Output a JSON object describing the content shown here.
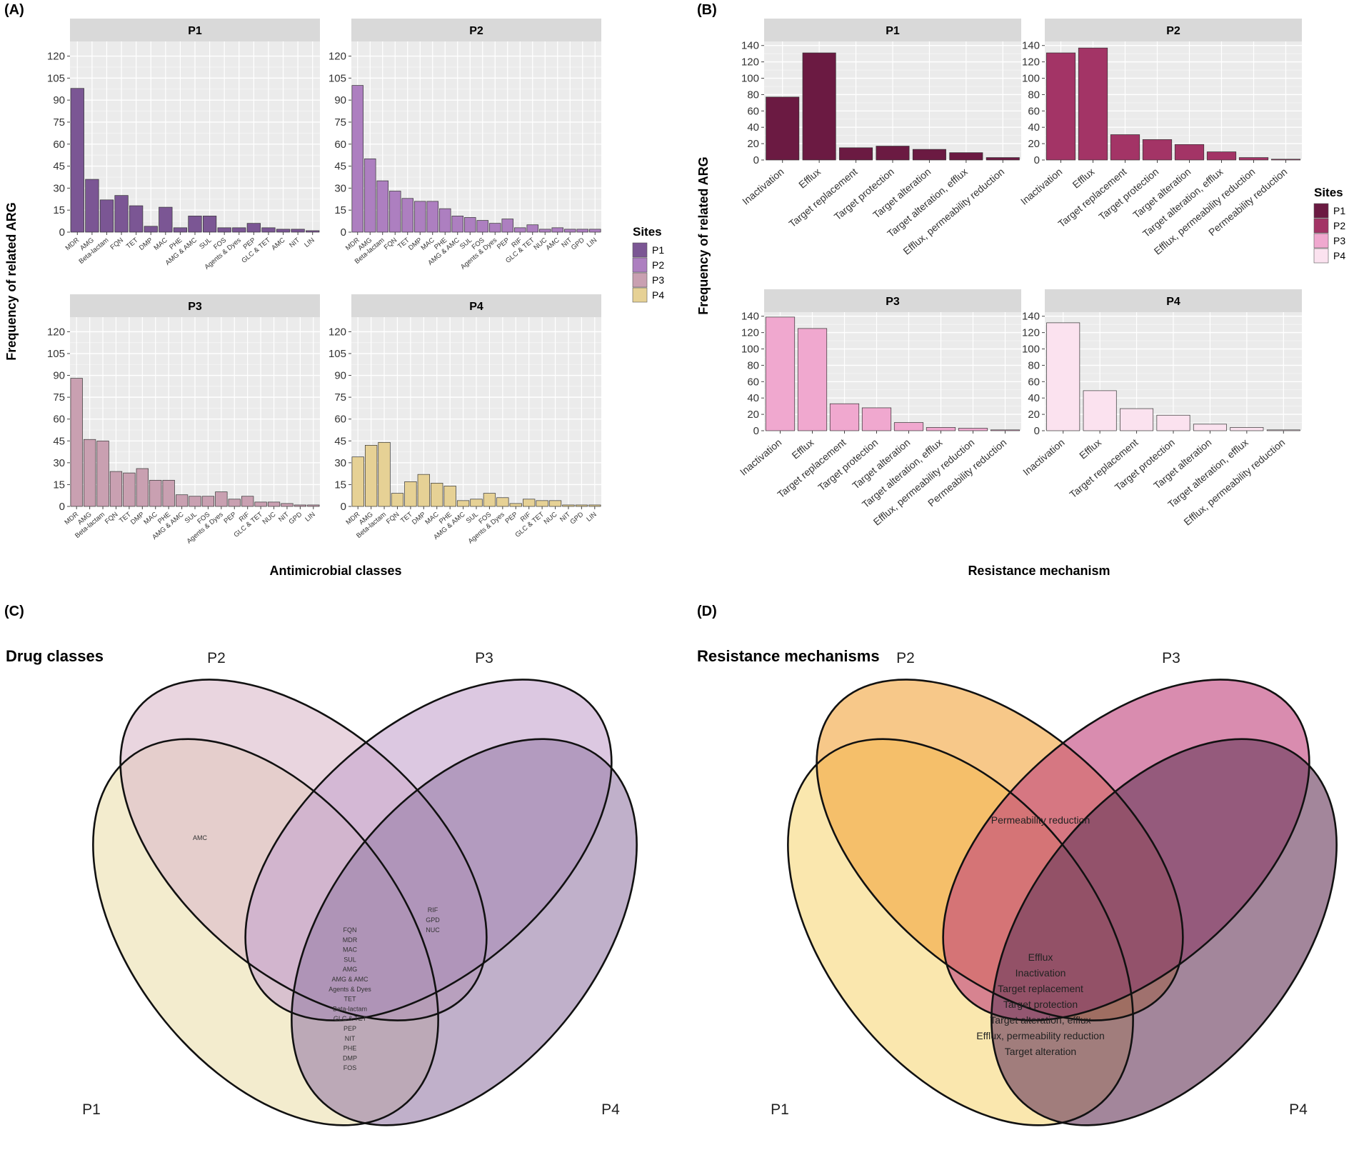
{
  "panels": {
    "A": "(A)",
    "B": "(B)",
    "C": "(C)",
    "D": "(D)"
  },
  "colors": {
    "panelA": {
      "P1": "#7b5694",
      "P2": "#ad7fc0",
      "P3": "#c9a0b1",
      "P4": "#e6d195"
    },
    "panelB": {
      "P1": "#6b1a42",
      "P2": "#a33466",
      "P3": "#f0a8cf",
      "P4": "#fbe2ef"
    },
    "vennC": [
      "#ece0b0",
      "#dcbccb",
      "#c7a6cf",
      "#9a80aa"
    ],
    "vennD": [
      "#f7d87c",
      "#f2a640",
      "#c2457e",
      "#6a3b5e"
    ]
  },
  "chart_data": [
    {
      "id": "A",
      "type": "bar",
      "facets": [
        "P1",
        "P2",
        "P3",
        "P4"
      ],
      "xlabel": "Antimicrobial classes",
      "ylabel": "Frequency of related ARG",
      "ylim": [
        0,
        130
      ],
      "yticks": [
        0,
        15,
        30,
        45,
        60,
        75,
        90,
        105,
        120
      ],
      "legend_title": "Sites",
      "legend": [
        "P1",
        "P2",
        "P3",
        "P4"
      ],
      "series": [
        {
          "name": "P1",
          "categories": [
            "MDR",
            "AMG",
            "Beta-lactam",
            "FQN",
            "TET",
            "DMP",
            "MAC",
            "PHE",
            "AMG & AMC",
            "SUL",
            "FOS",
            "Agents & Dyes",
            "PEP",
            "GLC & TET",
            "AMC",
            "NIT",
            "LIN"
          ],
          "values": [
            98,
            36,
            22,
            25,
            18,
            4,
            17,
            3,
            11,
            11,
            3,
            3,
            6,
            3,
            2,
            2,
            1
          ]
        },
        {
          "name": "P2",
          "categories": [
            "MDR",
            "AMG",
            "Beta-lactam",
            "FQN",
            "TET",
            "DMP",
            "MAC",
            "PHE",
            "AMG & AMC",
            "SUL",
            "FOS",
            "Agents & Dyes",
            "PEP",
            "RIF",
            "GLC & TET",
            "NUC",
            "AMC",
            "NIT",
            "GPD",
            "LIN"
          ],
          "values": [
            100,
            50,
            35,
            28,
            23,
            21,
            21,
            16,
            11,
            10,
            8,
            6,
            9,
            3,
            5,
            2,
            3,
            2,
            2,
            2
          ]
        },
        {
          "name": "P3",
          "categories": [
            "MDR",
            "AMG",
            "Beta-lactam",
            "FQN",
            "TET",
            "DMP",
            "MAC",
            "PHE",
            "AMG & AMC",
            "SUL",
            "FOS",
            "Agents & Dyes",
            "PEP",
            "RIF",
            "GLC & TET",
            "NUC",
            "NIT",
            "GPD",
            "LIN"
          ],
          "values": [
            88,
            46,
            45,
            24,
            23,
            26,
            18,
            18,
            8,
            7,
            7,
            10,
            5,
            7,
            3,
            3,
            2,
            1,
            1
          ]
        },
        {
          "name": "P4",
          "categories": [
            "MDR",
            "AMG",
            "Beta-lactam",
            "FQN",
            "TET",
            "DMP",
            "MAC",
            "PHE",
            "AMG & AMC",
            "SUL",
            "FOS",
            "Agents & Dyes",
            "PEP",
            "RIF",
            "GLC & TET",
            "NUC",
            "NIT",
            "GPD",
            "LIN"
          ],
          "values": [
            34,
            42,
            44,
            9,
            17,
            22,
            16,
            14,
            4,
            5,
            9,
            6,
            2,
            5,
            4,
            4,
            1,
            1,
            1
          ]
        }
      ]
    },
    {
      "id": "B",
      "type": "bar",
      "facets": [
        "P1",
        "P2",
        "P3",
        "P4"
      ],
      "xlabel": "Resistance mechanism",
      "ylabel": "Frequency of related ARG",
      "ylim": [
        0,
        145
      ],
      "yticks": [
        0,
        20,
        40,
        60,
        80,
        100,
        120,
        140
      ],
      "legend_title": "Sites",
      "legend": [
        "P1",
        "P2",
        "P3",
        "P4"
      ],
      "series": [
        {
          "name": "P1",
          "categories": [
            "Inactivation",
            "Efflux",
            "Target replacement",
            "Target protection",
            "Target alteration",
            "Target alteration, efflux",
            "Efflux, permeability reduction"
          ],
          "values": [
            77,
            131,
            15,
            17,
            13,
            9,
            3
          ]
        },
        {
          "name": "P2",
          "categories": [
            "Inactivation",
            "Efflux",
            "Target replacement",
            "Target protection",
            "Target alteration",
            "Target alteration, efflux",
            "Efflux, permeability reduction",
            "Permeability reduction"
          ],
          "values": [
            131,
            137,
            31,
            25,
            19,
            10,
            3,
            1
          ]
        },
        {
          "name": "P3",
          "categories": [
            "Inactivation",
            "Efflux",
            "Target replacement",
            "Target protection",
            "Target alteration",
            "Target alteration, efflux",
            "Efflux, permeability reduction",
            "Permeability reduction"
          ],
          "values": [
            139,
            125,
            33,
            28,
            10,
            4,
            3,
            1
          ]
        },
        {
          "name": "P4",
          "categories": [
            "Inactivation",
            "Efflux",
            "Target replacement",
            "Target protection",
            "Target alteration",
            "Target alteration, efflux",
            "Efflux, permeability reduction"
          ],
          "values": [
            132,
            49,
            27,
            19,
            8,
            4,
            1
          ]
        }
      ]
    },
    {
      "id": "C",
      "type": "venn",
      "title": "Drug classes",
      "sets": [
        "P1",
        "P2",
        "P3",
        "P4"
      ],
      "regions": {
        "P1&P2": [
          "AMC"
        ],
        "P2&P3&P4": [
          "RIF",
          "GPD",
          "NUC"
        ],
        "P1&P2&P3&P4": [
          "FQN",
          "MDR",
          "MAC",
          "SUL",
          "AMG",
          "AMG & AMC",
          "Agents & Dyes",
          "TET",
          "Beta-lactam",
          "GLC & TET",
          "PEP",
          "NIT",
          "PHE",
          "DMP",
          "FOS"
        ]
      }
    },
    {
      "id": "D",
      "type": "venn",
      "title": "Resistance mechanisms",
      "sets": [
        "P1",
        "P2",
        "P3",
        "P4"
      ],
      "regions": {
        "P2&P3": [
          "Permeability reduction"
        ],
        "P1&P2&P3&P4": [
          "Efflux",
          "Inactivation",
          "Target replacement",
          "Target protection",
          "Target alteration, efflux",
          "Efflux, permeability reduction",
          "Target alteration"
        ]
      }
    }
  ]
}
